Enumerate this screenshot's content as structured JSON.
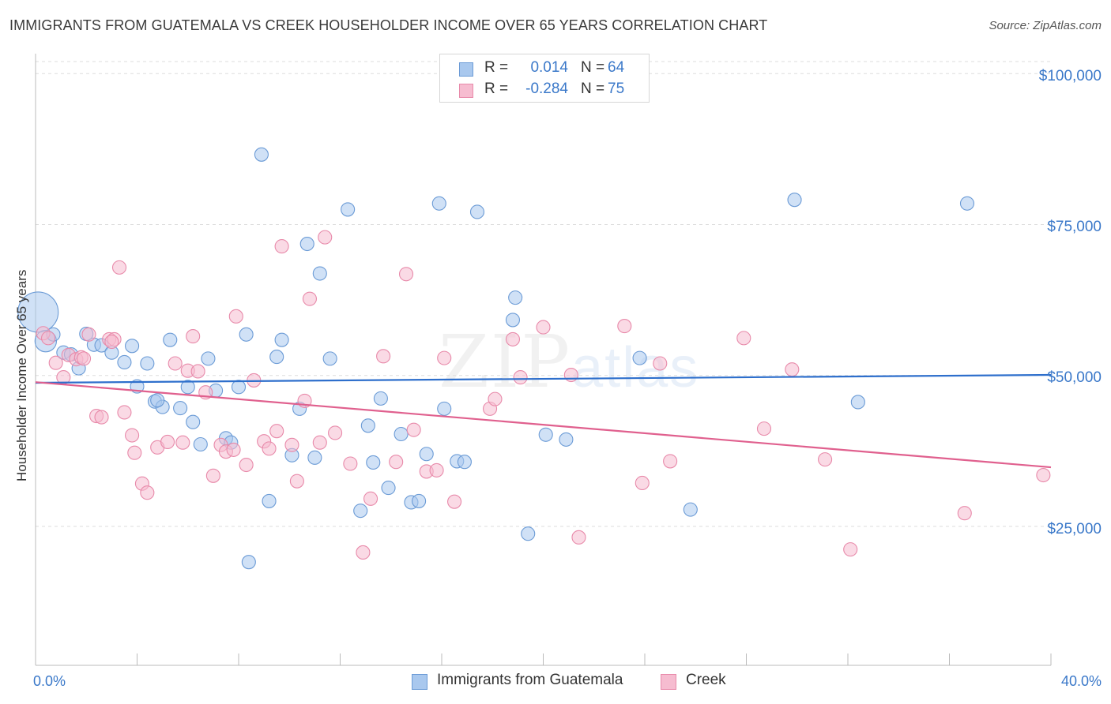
{
  "title": "IMMIGRANTS FROM GUATEMALA VS CREEK HOUSEHOLDER INCOME OVER 65 YEARS CORRELATION CHART",
  "source": "Source: ZipAtlas.com",
  "watermark": {
    "zip": "ZIP",
    "atlas": "atlas"
  },
  "legend_top": [
    {
      "r_label": "R =",
      "r_value": "0.014",
      "n_label": "N =",
      "n_value": "64"
    },
    {
      "r_label": "R =",
      "r_value": "-0.284",
      "n_label": "N =",
      "n_value": "75"
    }
  ],
  "legend_bottom": [
    "Immigrants from Guatemala",
    "Creek"
  ],
  "colors": {
    "blue_fill": "#a9c8ee",
    "blue_stroke": "#6b9bd6",
    "blue_line": "#2e6fcc",
    "pink_fill": "#f6bcd0",
    "pink_stroke": "#e88aaa",
    "pink_line": "#e0608e",
    "grid": "#dddddd",
    "axis_text": "#3a78c9"
  },
  "chart_data": {
    "type": "scatter",
    "title": "IMMIGRANTS FROM GUATEMALA VS CREEK HOUSEHOLDER INCOME OVER 65 YEARS CORRELATION CHART",
    "xlabel": "",
    "ylabel": "Householder Income Over 65 years",
    "x_tick_labels": [
      "0.0%",
      "40.0%"
    ],
    "y_tick_labels": [
      "$100,000",
      "$75,000",
      "$50,000",
      "$25,000"
    ],
    "y_ticks": [
      100000,
      75000,
      50000,
      25000
    ],
    "xlim": [
      0,
      40
    ],
    "ylim": [
      2000,
      102000
    ],
    "grid": true,
    "legend_position": "bottom",
    "series": [
      {
        "name": "Immigrants from Guatemala",
        "color": "#6b9bd6",
        "trend": {
          "x": [
            0,
            40
          ],
          "y": [
            48800,
            50100
          ]
        },
        "points": [
          [
            0.1,
            60500,
            3
          ],
          [
            0.4,
            55700,
            1.6
          ],
          [
            0.7,
            56800,
            1
          ],
          [
            1.1,
            53800,
            1
          ],
          [
            1.4,
            53500,
            1
          ],
          [
            1.7,
            51200,
            1
          ],
          [
            2.0,
            56900,
            1
          ],
          [
            2.3,
            55100,
            1
          ],
          [
            2.6,
            55000,
            1
          ],
          [
            3.0,
            53800,
            1
          ],
          [
            3.5,
            52200,
            1
          ],
          [
            3.8,
            54900,
            1
          ],
          [
            4.0,
            48200,
            1
          ],
          [
            4.4,
            52000,
            1
          ],
          [
            4.7,
            45700,
            1
          ],
          [
            5.0,
            44800,
            1
          ],
          [
            5.3,
            55900,
            1
          ],
          [
            5.7,
            44600,
            1
          ],
          [
            6.0,
            48100,
            1
          ],
          [
            6.2,
            42300,
            1
          ],
          [
            6.5,
            38600,
            1
          ],
          [
            6.8,
            52800,
            1
          ],
          [
            7.1,
            47500,
            1
          ],
          [
            7.5,
            39600,
            1
          ],
          [
            7.7,
            38900,
            1
          ],
          [
            8.0,
            48100,
            1
          ],
          [
            8.3,
            56800,
            1
          ],
          [
            8.4,
            19100,
            1
          ],
          [
            8.9,
            86600,
            1
          ],
          [
            9.2,
            29200,
            1
          ],
          [
            9.5,
            53100,
            1
          ],
          [
            9.7,
            55900,
            1
          ],
          [
            10.1,
            36800,
            1
          ],
          [
            10.4,
            44500,
            1
          ],
          [
            10.7,
            71800,
            1
          ],
          [
            11.0,
            36400,
            1
          ],
          [
            11.2,
            66900,
            1
          ],
          [
            11.6,
            52800,
            1
          ],
          [
            12.3,
            77500,
            1
          ],
          [
            12.8,
            27600,
            1
          ],
          [
            13.1,
            41700,
            1
          ],
          [
            13.3,
            35600,
            1
          ],
          [
            13.6,
            46200,
            1
          ],
          [
            13.9,
            31400,
            1
          ],
          [
            14.4,
            40300,
            1
          ],
          [
            14.8,
            29000,
            1
          ],
          [
            15.1,
            29200,
            1
          ],
          [
            15.4,
            37000,
            1
          ],
          [
            15.9,
            78500,
            1
          ],
          [
            16.1,
            44500,
            1
          ],
          [
            16.6,
            35800,
            1
          ],
          [
            16.9,
            35700,
            1
          ],
          [
            17.4,
            77100,
            1
          ],
          [
            18.8,
            59200,
            1
          ],
          [
            18.9,
            62900,
            1
          ],
          [
            19.4,
            23800,
            1
          ],
          [
            20.1,
            40200,
            1
          ],
          [
            20.9,
            39400,
            1
          ],
          [
            23.8,
            52900,
            1
          ],
          [
            25.8,
            27800,
            1
          ],
          [
            29.9,
            79100,
            1
          ],
          [
            32.4,
            45600,
            1
          ],
          [
            36.7,
            78500,
            1
          ],
          [
            4.8,
            45900,
            1
          ]
        ]
      },
      {
        "name": "Creek",
        "color": "#e88aaa",
        "trend": {
          "x": [
            0,
            40
          ],
          "y": [
            48900,
            34800
          ]
        },
        "points": [
          [
            0.3,
            57000,
            1
          ],
          [
            0.5,
            56200,
            1
          ],
          [
            0.8,
            52100,
            1
          ],
          [
            1.1,
            49700,
            1
          ],
          [
            1.3,
            53400,
            1
          ],
          [
            1.6,
            52700,
            1
          ],
          [
            1.8,
            53000,
            1
          ],
          [
            2.1,
            56800,
            1
          ],
          [
            2.4,
            43300,
            1
          ],
          [
            2.6,
            43100,
            1
          ],
          [
            2.9,
            56000,
            1
          ],
          [
            3.1,
            56000,
            1
          ],
          [
            3.3,
            67900,
            1
          ],
          [
            3.5,
            43900,
            1
          ],
          [
            3.8,
            40100,
            1
          ],
          [
            3.9,
            37200,
            1
          ],
          [
            4.2,
            32100,
            1
          ],
          [
            4.4,
            30600,
            1
          ],
          [
            4.8,
            38100,
            1
          ],
          [
            5.2,
            39000,
            1
          ],
          [
            5.5,
            52000,
            1
          ],
          [
            5.8,
            38900,
            1
          ],
          [
            6.0,
            50800,
            1
          ],
          [
            6.2,
            56500,
            1
          ],
          [
            6.4,
            50700,
            1
          ],
          [
            6.7,
            47200,
            1
          ],
          [
            7.0,
            33400,
            1
          ],
          [
            7.3,
            38500,
            1
          ],
          [
            7.5,
            37400,
            1
          ],
          [
            7.8,
            37700,
            1
          ],
          [
            7.9,
            59800,
            1
          ],
          [
            8.3,
            35200,
            1
          ],
          [
            8.6,
            49200,
            1
          ],
          [
            9.0,
            39100,
            1
          ],
          [
            9.2,
            37900,
            1
          ],
          [
            9.5,
            40800,
            1
          ],
          [
            9.7,
            71400,
            1
          ],
          [
            10.1,
            38500,
            1
          ],
          [
            10.3,
            32500,
            1
          ],
          [
            10.6,
            45800,
            1
          ],
          [
            10.8,
            62700,
            1
          ],
          [
            11.2,
            38900,
            1
          ],
          [
            11.4,
            72900,
            1
          ],
          [
            11.8,
            40500,
            1
          ],
          [
            12.4,
            35400,
            1
          ],
          [
            12.9,
            20700,
            1
          ],
          [
            13.2,
            29600,
            1
          ],
          [
            13.7,
            53200,
            1
          ],
          [
            14.2,
            35700,
            1
          ],
          [
            14.6,
            66800,
            1
          ],
          [
            14.9,
            41000,
            1
          ],
          [
            15.4,
            34100,
            1
          ],
          [
            15.8,
            34300,
            1
          ],
          [
            16.1,
            52900,
            1
          ],
          [
            16.5,
            29100,
            1
          ],
          [
            17.9,
            44500,
            1
          ],
          [
            18.1,
            46100,
            1
          ],
          [
            18.8,
            56000,
            1
          ],
          [
            19.1,
            49700,
            1
          ],
          [
            20.0,
            58000,
            1
          ],
          [
            21.1,
            50100,
            1
          ],
          [
            21.4,
            23200,
            1
          ],
          [
            23.2,
            58200,
            1
          ],
          [
            23.9,
            32200,
            1
          ],
          [
            24.6,
            52000,
            1
          ],
          [
            25.0,
            35800,
            1
          ],
          [
            27.9,
            56200,
            1
          ],
          [
            28.7,
            41200,
            1
          ],
          [
            29.8,
            51000,
            1
          ],
          [
            31.1,
            36100,
            1
          ],
          [
            32.1,
            21200,
            1
          ],
          [
            36.6,
            27200,
            1
          ],
          [
            39.7,
            33500,
            1
          ],
          [
            3.0,
            55600,
            1
          ],
          [
            1.9,
            52800,
            1
          ]
        ]
      }
    ]
  }
}
